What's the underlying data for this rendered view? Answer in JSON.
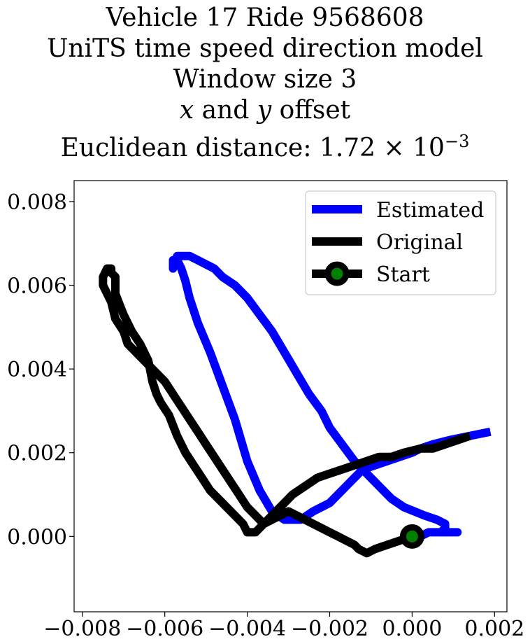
{
  "chart_data": {
    "type": "line",
    "title_lines": [
      "Vehicle 17 Ride 9568608",
      "UniTS time speed direction model",
      "Window size 3"
    ],
    "title_offset_line": {
      "x_var": "x",
      "and_word": "and",
      "y_var": "y",
      "offset_word": "offset"
    },
    "title_distance": {
      "prefix": "Euclidean distance: ",
      "mantissa": "1.72",
      "times": "×",
      "base": "10",
      "exponent": "−3"
    },
    "xlim": [
      -0.0082,
      0.0023
    ],
    "ylim": [
      -0.0018,
      0.0085
    ],
    "xticks": [
      -0.008,
      -0.006,
      -0.004,
      -0.002,
      0.0,
      0.002
    ],
    "xtick_labels": [
      "−0.008",
      "−0.006",
      "−0.004",
      "−0.002",
      "0.000",
      "0.002"
    ],
    "yticks": [
      0.0,
      0.002,
      0.004,
      0.006,
      0.008
    ],
    "ytick_labels": [
      "0.000",
      "0.002",
      "0.004",
      "0.006",
      "0.008"
    ],
    "grid": false,
    "legend_position": "top-right",
    "series": [
      {
        "name": "Estimated",
        "color": "#0000ff",
        "x": [
          0.0019,
          0.0014,
          0.0009,
          0.0005,
          0.0002,
          0.0,
          -0.0003,
          -0.0006,
          -0.0009,
          -0.0012,
          -0.0014,
          -0.0016,
          -0.0018,
          -0.002,
          -0.0024,
          -0.0027,
          -0.0031,
          -0.0034,
          -0.0037,
          -0.004,
          -0.0043,
          -0.0046,
          -0.0049,
          -0.0052,
          -0.0054,
          -0.0055,
          -0.0056,
          -0.0057,
          -0.0058,
          -0.0058,
          -0.0057,
          -0.0055,
          -0.0054,
          -0.0052,
          -0.005,
          -0.0048,
          -0.0046,
          -0.0043,
          -0.004,
          -0.0037,
          -0.0034,
          -0.0031,
          -0.0028,
          -0.0025,
          -0.0022,
          -0.002,
          -0.0017,
          -0.0014,
          -0.0011,
          -0.0008,
          -0.0005,
          -0.0002,
          0.0003,
          0.0006,
          0.0008,
          0.0008,
          0.0007,
          0.0009,
          0.0011,
          0.001,
          0.0008,
          0.0004,
          0.0002,
          0.0
        ],
        "y": [
          0.0025,
          0.0024,
          0.0023,
          0.0022,
          0.0021,
          0.002,
          0.0019,
          0.0018,
          0.0017,
          0.0016,
          0.0014,
          0.0012,
          0.001,
          0.0008,
          0.0006,
          0.0004,
          0.0004,
          0.0006,
          0.0011,
          0.0018,
          0.0028,
          0.0036,
          0.0044,
          0.0051,
          0.0057,
          0.0061,
          0.0064,
          0.0066,
          0.0066,
          0.0064,
          0.0067,
          0.0067,
          0.0067,
          0.0066,
          0.0065,
          0.0064,
          0.0062,
          0.006,
          0.0057,
          0.0053,
          0.0049,
          0.0044,
          0.0039,
          0.0034,
          0.003,
          0.0026,
          0.0022,
          0.0018,
          0.0015,
          0.0012,
          0.0009,
          0.0007,
          0.0005,
          0.0004,
          0.0003,
          0.0002,
          0.0001,
          0.0001,
          0.0001,
          0.0001,
          0.0001,
          0.0001,
          0.0,
          0.0
        ]
      },
      {
        "name": "Original",
        "color": "#000000",
        "x": [
          0.0014,
          0.0011,
          0.0008,
          0.0005,
          0.0002,
          -0.0002,
          -0.0005,
          -0.0008,
          -0.0011,
          -0.0014,
          -0.0017,
          -0.002,
          -0.0023,
          -0.0026,
          -0.0029,
          -0.0031,
          -0.0034,
          -0.0036,
          -0.0038,
          -0.004,
          -0.0041,
          -0.0043,
          -0.0045,
          -0.0047,
          -0.0049,
          -0.0051,
          -0.0053,
          -0.0055,
          -0.0057,
          -0.0059,
          -0.0061,
          -0.0062,
          -0.0063,
          -0.0064,
          -0.0066,
          -0.0068,
          -0.007,
          -0.0072,
          -0.0072,
          -0.0072,
          -0.0073,
          -0.0073,
          -0.0074,
          -0.0075,
          -0.0075,
          -0.0074,
          -0.0073,
          -0.0072,
          -0.007,
          -0.0069,
          -0.0067,
          -0.0065,
          -0.0063,
          -0.006,
          -0.0058,
          -0.0056,
          -0.0054,
          -0.0052,
          -0.005,
          -0.0048,
          -0.0046,
          -0.0044,
          -0.0042,
          -0.004,
          -0.0038,
          -0.0036,
          -0.0034,
          -0.0032,
          -0.003,
          -0.0028,
          -0.0026,
          -0.0024,
          -0.0022,
          -0.002,
          -0.0018,
          -0.0016,
          -0.0014,
          -0.0013,
          -0.0011,
          -0.0009,
          -0.0006,
          -0.0003,
          0.0
        ],
        "y": [
          0.0024,
          0.0023,
          0.0022,
          0.0021,
          0.0021,
          0.002,
          0.0019,
          0.0019,
          0.0018,
          0.0017,
          0.0016,
          0.0015,
          0.0014,
          0.0012,
          0.001,
          0.0008,
          0.0005,
          0.0003,
          0.0001,
          0.0001,
          0.0003,
          0.0005,
          0.0007,
          0.0009,
          0.0011,
          0.0014,
          0.0017,
          0.002,
          0.0024,
          0.0029,
          0.0032,
          0.0034,
          0.0037,
          0.0042,
          0.0046,
          0.0049,
          0.0053,
          0.0058,
          0.006,
          0.0062,
          0.0063,
          0.0064,
          0.0064,
          0.0062,
          0.006,
          0.0058,
          0.0056,
          0.0052,
          0.0049,
          0.0046,
          0.0044,
          0.0042,
          0.004,
          0.0037,
          0.0034,
          0.0031,
          0.0028,
          0.0025,
          0.0022,
          0.0019,
          0.0016,
          0.0013,
          0.001,
          0.0007,
          0.0005,
          0.0003,
          0.0004,
          0.0005,
          0.0006,
          0.0005,
          0.0004,
          0.0003,
          0.0002,
          0.0001,
          0.0,
          -0.0001,
          -0.0002,
          -0.0003,
          -0.0004,
          -0.0003,
          -0.0002,
          -0.0001,
          0.0
        ]
      }
    ],
    "start_marker": {
      "name": "Start",
      "x": 0.0,
      "y": 0.0,
      "edge_color": "#000000",
      "face_color": "#008000"
    }
  }
}
